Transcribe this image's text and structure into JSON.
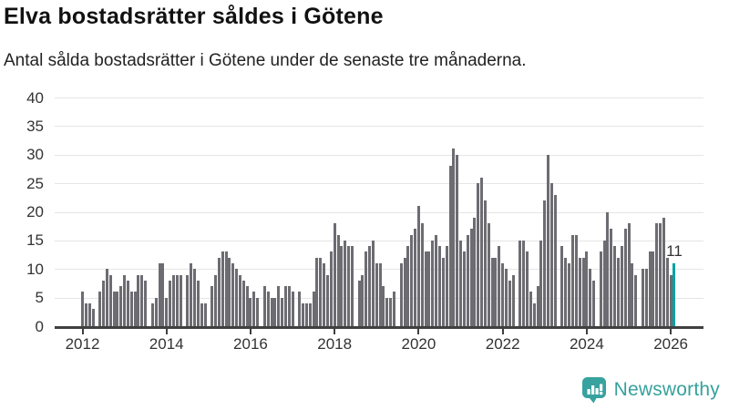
{
  "header": {
    "title": "Elva bostadsrätter såldes i Götene",
    "subtitle": "Antal sålda bostadsrätter i Götene under de senaste tre månaderna."
  },
  "annotation": {
    "last_value_label": "11"
  },
  "branding": {
    "name": "Newsworthy",
    "logo_icon": "bar-chart-speech-bubble-icon",
    "brand_color": "#38a29e"
  },
  "colors": {
    "bar": "#6c6c72",
    "highlight": "#00a2a2",
    "axis": "#404040",
    "gridline": "#e5e5e5",
    "label_text": "#333333"
  },
  "chart_data": {
    "type": "bar",
    "title": "Elva bostadsrätter såldes i Götene",
    "subtitle": "Antal sålda bostadsrätter i Götene under de senaste tre månaderna.",
    "x_start": "2012-01",
    "x_end": "2026-02",
    "x_resolution": "monthly",
    "x_tick_labels": [
      "2012",
      "2014",
      "2016",
      "2018",
      "2020",
      "2022",
      "2024",
      "2026"
    ],
    "y_ticks": [
      0,
      5,
      10,
      15,
      20,
      25,
      30,
      35,
      40
    ],
    "ylim": [
      0,
      40
    ],
    "grid": true,
    "legend": "none",
    "highlight_last_bar": true,
    "last_bar_value": 11,
    "values": [
      6,
      4,
      4,
      3,
      0,
      6,
      8,
      10,
      9,
      6,
      6,
      7,
      9,
      8,
      6,
      6,
      9,
      9,
      8,
      0,
      4,
      5,
      11,
      11,
      5,
      8,
      9,
      9,
      9,
      0,
      9,
      11,
      10,
      8,
      4,
      4,
      0,
      7,
      9,
      12,
      13,
      13,
      12,
      11,
      10,
      9,
      8,
      7,
      5,
      6,
      5,
      0,
      7,
      6,
      5,
      5,
      7,
      5,
      7,
      7,
      6,
      0,
      6,
      4,
      4,
      4,
      6,
      12,
      12,
      11,
      9,
      13,
      18,
      16,
      14,
      15,
      14,
      14,
      0,
      8,
      9,
      13,
      14,
      15,
      11,
      11,
      7,
      5,
      5,
      6,
      0,
      11,
      12,
      14,
      16,
      17,
      21,
      18,
      13,
      13,
      15,
      16,
      14,
      12,
      14,
      28,
      31,
      30,
      15,
      13,
      16,
      17,
      19,
      25,
      26,
      22,
      18,
      12,
      12,
      14,
      11,
      10,
      8,
      9,
      0,
      15,
      15,
      13,
      6,
      4,
      7,
      15,
      22,
      30,
      25,
      23,
      0,
      14,
      12,
      11,
      16,
      16,
      12,
      12,
      13,
      10,
      8,
      0,
      13,
      15,
      20,
      17,
      14,
      12,
      14,
      17,
      18,
      11,
      9,
      0,
      10,
      10,
      13,
      13,
      18,
      18,
      19,
      12,
      9,
      11
    ]
  }
}
